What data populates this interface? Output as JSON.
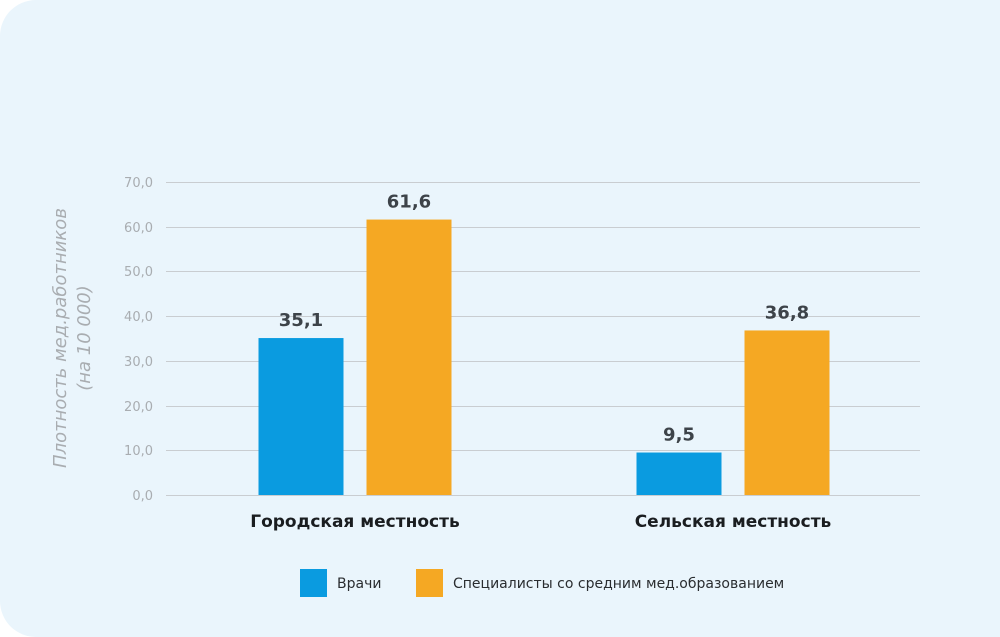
{
  "chart_data": {
    "type": "bar",
    "title": "",
    "xlabel": "",
    "ylabel": [
      "Плотность мед.работников",
      "(на 10 000)"
    ],
    "categories": [
      "Городская местность",
      "Сельская местность"
    ],
    "series": [
      {
        "name": "Врачи",
        "color": "#0a9be0",
        "values": [
          35.1,
          9.5
        ],
        "labels": [
          "35,1",
          "9,5"
        ]
      },
      {
        "name": "Специалисты со средним мед.образованием",
        "color": "#f5a823",
        "values": [
          61.6,
          36.8
        ],
        "labels": [
          "61,6",
          "36,8"
        ]
      }
    ],
    "ylim": [
      0,
      70
    ],
    "yticks": [
      0,
      10,
      20,
      30,
      40,
      50,
      60,
      70
    ],
    "ytick_labels": [
      "0,0",
      "10,0",
      "20,0",
      "30,0",
      "40,0",
      "50,0",
      "60,0",
      "70,0"
    ],
    "grid": true,
    "legend_position": "bottom-center"
  },
  "colors": {
    "background": "#eaf5fc",
    "grid": "#c9cdd1",
    "tick_text": "#a9adb1",
    "value_label": "#3d4349"
  }
}
